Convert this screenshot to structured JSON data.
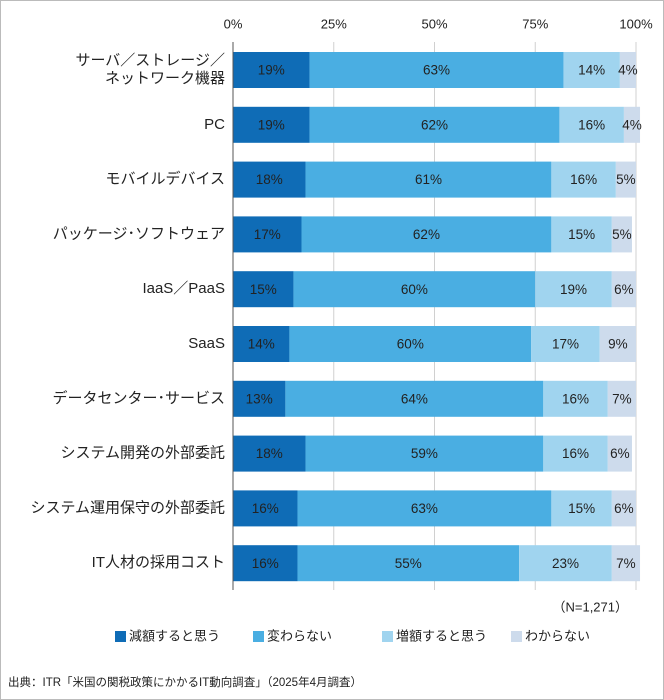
{
  "chart_data": {
    "type": "stacked_barh",
    "categories": [
      "サーバ／ストレージ／\nネットワーク機器",
      "PC",
      "モバイルデバイス",
      "パッケージ･ソフトウェア",
      "IaaS／PaaS",
      "SaaS",
      "データセンター･サービス",
      "システム開発の外部委託",
      "システム運用保守の外部委託",
      "IT人材の採用コスト"
    ],
    "series": [
      {
        "name": "減額すると思う",
        "color": "#0f6cb6",
        "label_color": "#ffffff",
        "values": [
          19,
          19,
          18,
          17,
          15,
          14,
          13,
          18,
          16,
          16
        ],
        "value_labels": [
          "19%",
          "19%",
          "18%",
          "17%",
          "15%",
          "14%",
          "13%",
          "18%",
          "16%",
          "16%"
        ]
      },
      {
        "name": "変わらない",
        "color": "#4aaee2",
        "label_color": "#222222",
        "values": [
          63,
          62,
          61,
          62,
          60,
          60,
          64,
          59,
          63,
          55
        ],
        "value_labels": [
          "63%",
          "62%",
          "61%",
          "62%",
          "60%",
          "60%",
          "64%",
          "59%",
          "63%",
          "55%"
        ]
      },
      {
        "name": "増額すると思う",
        "color": "#a0d4ef",
        "label_color": "#222222",
        "values": [
          14,
          16,
          16,
          15,
          19,
          17,
          16,
          16,
          15,
          23
        ],
        "value_labels": [
          "14%",
          "16%",
          "16%",
          "15%",
          "19%",
          "17%",
          "16%",
          "16%",
          "15%",
          "23%"
        ]
      },
      {
        "name": "わからない",
        "color": "#cddbec",
        "label_color": "#222222",
        "values": [
          4,
          4,
          5,
          5,
          6,
          9,
          7,
          6,
          6,
          7
        ],
        "value_labels": [
          "4%",
          "4%",
          "5%",
          "5%",
          "6%",
          "9%",
          "7%",
          "6%",
          "6%",
          "7%"
        ]
      }
    ],
    "xlim": [
      0,
      100
    ],
    "xticks": [
      {
        "value": 0,
        "label": "0%"
      },
      {
        "value": 25,
        "label": "25%"
      },
      {
        "value": 50,
        "label": "50%"
      },
      {
        "value": 75,
        "label": "75%"
      },
      {
        "value": 100,
        "label": "100%"
      }
    ],
    "grid": true,
    "note": "（N=1,271）",
    "source": "出典：ITR「米国の関税政策にかかるIT動向調査」（2025年4月調査）"
  }
}
